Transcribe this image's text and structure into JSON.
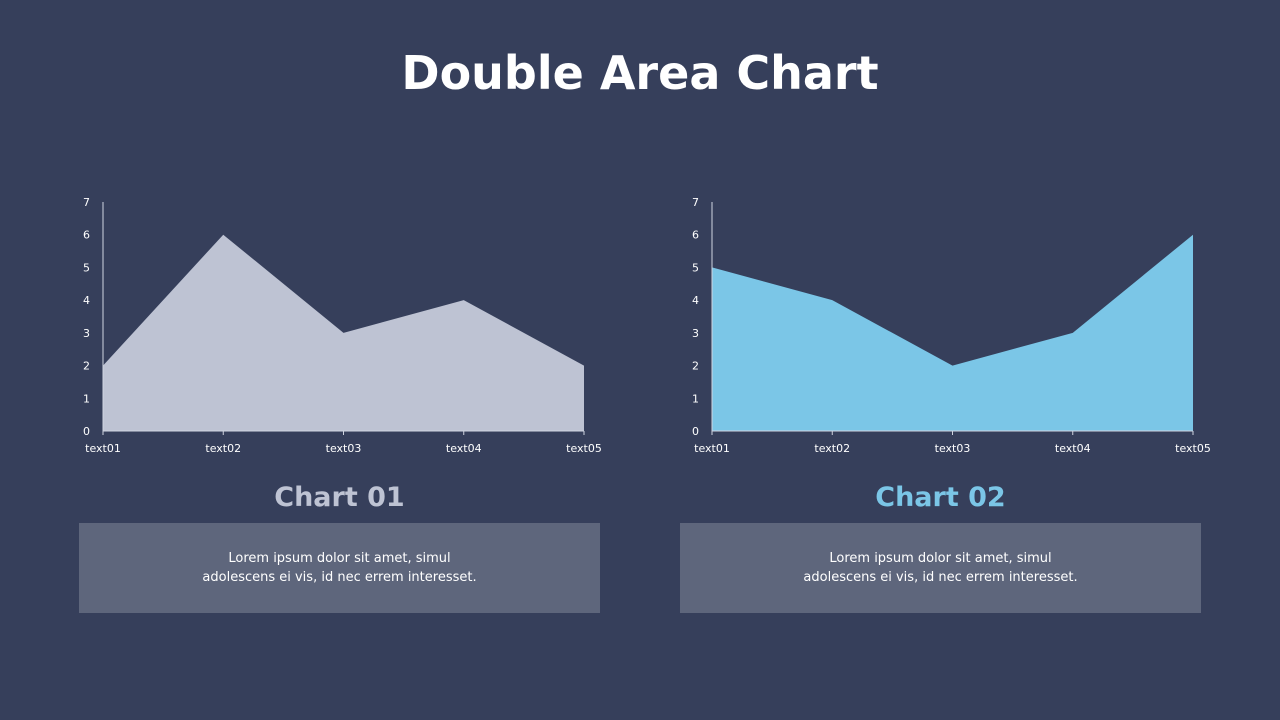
{
  "page": {
    "title": "Double Area Chart"
  },
  "colors": {
    "background": "#363f5b",
    "chart1_fill": "#bec3d3",
    "chart2_fill": "#7bc6e7",
    "chart1_label": "#bec3d3",
    "chart2_label": "#7bc6e7",
    "desc_box": "#5e667c",
    "axis": "#d0d4e0"
  },
  "panels": [
    {
      "label": "Chart 01",
      "desc_line1": "Lorem  ipsum dolor  sit amet,  simul",
      "desc_line2": "adolescens ei vis, id nec errem  interesset."
    },
    {
      "label": "Chart 02",
      "desc_line1": "Lorem  ipsum dolor  sit amet,  simul",
      "desc_line2": "adolescens ei vis, id nec errem  interesset."
    }
  ],
  "chart_data": [
    {
      "type": "area",
      "title": "Chart 01",
      "categories": [
        "text01",
        "text02",
        "text03",
        "text04",
        "text05"
      ],
      "values": [
        2,
        6,
        3,
        4,
        2
      ],
      "xlabel": "",
      "ylabel": "",
      "ylim": [
        0,
        7
      ],
      "yticks": [
        0,
        1,
        2,
        3,
        4,
        5,
        6,
        7
      ],
      "grid": false,
      "legend": "none",
      "color": "#bec3d3"
    },
    {
      "type": "area",
      "title": "Chart 02",
      "categories": [
        "text01",
        "text02",
        "text03",
        "text04",
        "text05"
      ],
      "values": [
        5,
        4,
        2,
        3,
        6
      ],
      "xlabel": "",
      "ylabel": "",
      "ylim": [
        0,
        7
      ],
      "yticks": [
        0,
        1,
        2,
        3,
        4,
        5,
        6,
        7
      ],
      "grid": false,
      "legend": "none",
      "color": "#7bc6e7"
    }
  ]
}
